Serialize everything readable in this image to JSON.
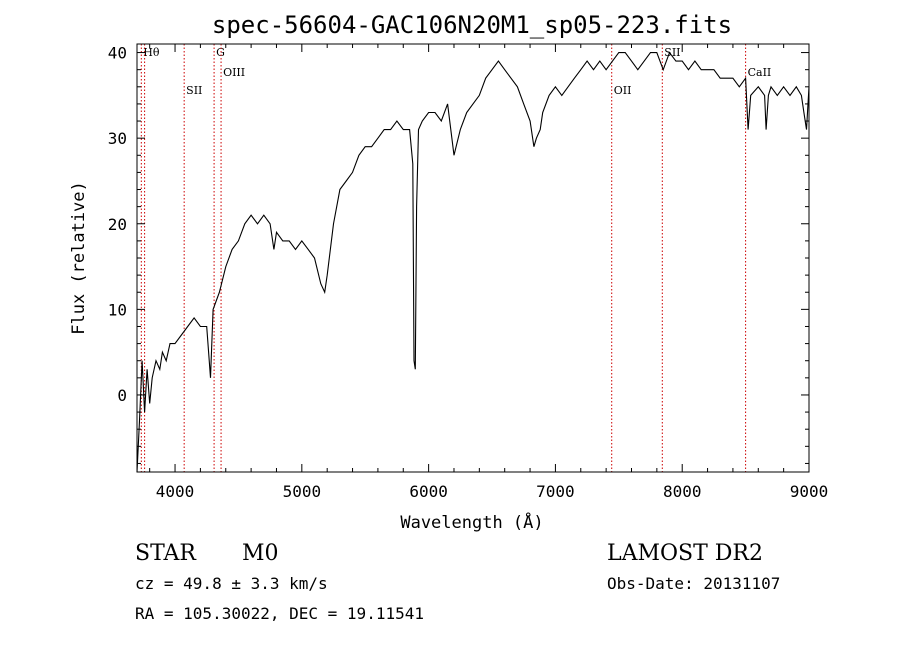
{
  "chart_data": {
    "type": "line",
    "title": "spec-56604-GAC106N20M1_sp05-223.fits",
    "xlabel": "Wavelength (Å)",
    "ylabel": "Flux (relative)",
    "xlim": [
      3700,
      9000
    ],
    "ylim": [
      -9,
      41
    ],
    "xticks": [
      4000,
      5000,
      6000,
      7000,
      8000,
      9000
    ],
    "yticks": [
      0,
      10,
      20,
      30,
      40
    ],
    "grid": false,
    "series": [
      {
        "values": [
          [
            3700,
            -9
          ],
          [
            3720,
            -3
          ],
          [
            3740,
            4
          ],
          [
            3760,
            -2
          ],
          [
            3780,
            3
          ],
          [
            3800,
            -1
          ],
          [
            3820,
            2
          ],
          [
            3850,
            4
          ],
          [
            3880,
            3
          ],
          [
            3900,
            5
          ],
          [
            3930,
            4
          ],
          [
            3960,
            6
          ],
          [
            4000,
            6
          ],
          [
            4050,
            7
          ],
          [
            4100,
            8
          ],
          [
            4150,
            9
          ],
          [
            4200,
            8
          ],
          [
            4250,
            8
          ],
          [
            4280,
            2
          ],
          [
            4300,
            10
          ],
          [
            4350,
            12
          ],
          [
            4400,
            15
          ],
          [
            4450,
            17
          ],
          [
            4500,
            18
          ],
          [
            4550,
            20
          ],
          [
            4600,
            21
          ],
          [
            4650,
            20
          ],
          [
            4700,
            21
          ],
          [
            4750,
            20
          ],
          [
            4780,
            17
          ],
          [
            4800,
            19
          ],
          [
            4850,
            18
          ],
          [
            4900,
            18
          ],
          [
            4950,
            17
          ],
          [
            5000,
            18
          ],
          [
            5050,
            17
          ],
          [
            5100,
            16
          ],
          [
            5150,
            13
          ],
          [
            5180,
            12
          ],
          [
            5200,
            14
          ],
          [
            5250,
            20
          ],
          [
            5300,
            24
          ],
          [
            5350,
            25
          ],
          [
            5400,
            26
          ],
          [
            5450,
            28
          ],
          [
            5500,
            29
          ],
          [
            5550,
            29
          ],
          [
            5600,
            30
          ],
          [
            5650,
            31
          ],
          [
            5700,
            31
          ],
          [
            5750,
            32
          ],
          [
            5800,
            31
          ],
          [
            5850,
            31
          ],
          [
            5875,
            27
          ],
          [
            5885,
            4
          ],
          [
            5895,
            3
          ],
          [
            5905,
            22
          ],
          [
            5920,
            31
          ],
          [
            5950,
            32
          ],
          [
            6000,
            33
          ],
          [
            6050,
            33
          ],
          [
            6100,
            32
          ],
          [
            6150,
            34
          ],
          [
            6200,
            28
          ],
          [
            6250,
            31
          ],
          [
            6300,
            33
          ],
          [
            6350,
            34
          ],
          [
            6400,
            35
          ],
          [
            6450,
            37
          ],
          [
            6500,
            38
          ],
          [
            6550,
            39
          ],
          [
            6600,
            38
          ],
          [
            6650,
            37
          ],
          [
            6700,
            36
          ],
          [
            6750,
            34
          ],
          [
            6800,
            32
          ],
          [
            6830,
            29
          ],
          [
            6850,
            30
          ],
          [
            6880,
            31
          ],
          [
            6900,
            33
          ],
          [
            6950,
            35
          ],
          [
            7000,
            36
          ],
          [
            7050,
            35
          ],
          [
            7100,
            36
          ],
          [
            7150,
            37
          ],
          [
            7200,
            38
          ],
          [
            7250,
            39
          ],
          [
            7300,
            38
          ],
          [
            7350,
            39
          ],
          [
            7400,
            38
          ],
          [
            7450,
            39
          ],
          [
            7500,
            40
          ],
          [
            7550,
            40
          ],
          [
            7600,
            39
          ],
          [
            7650,
            38
          ],
          [
            7700,
            39
          ],
          [
            7750,
            40
          ],
          [
            7800,
            40
          ],
          [
            7850,
            38
          ],
          [
            7900,
            40
          ],
          [
            7950,
            39
          ],
          [
            8000,
            39
          ],
          [
            8050,
            38
          ],
          [
            8100,
            39
          ],
          [
            8150,
            38
          ],
          [
            8200,
            38
          ],
          [
            8250,
            38
          ],
          [
            8300,
            37
          ],
          [
            8350,
            37
          ],
          [
            8400,
            37
          ],
          [
            8450,
            36
          ],
          [
            8500,
            37
          ],
          [
            8520,
            31
          ],
          [
            8540,
            35
          ],
          [
            8600,
            36
          ],
          [
            8650,
            35
          ],
          [
            8662,
            31
          ],
          [
            8680,
            35
          ],
          [
            8700,
            36
          ],
          [
            8750,
            35
          ],
          [
            8800,
            36
          ],
          [
            8850,
            35
          ],
          [
            8900,
            36
          ],
          [
            8940,
            35
          ],
          [
            8960,
            33
          ],
          [
            8980,
            31
          ],
          [
            9000,
            36
          ]
        ]
      }
    ],
    "lines": [
      {
        "wavelength": 3734,
        "label": "Hθ"
      },
      {
        "wavelength": 3760,
        "label": ""
      },
      {
        "wavelength": 4072,
        "label": "SII"
      },
      {
        "wavelength": 4308,
        "label": "G"
      },
      {
        "wavelength": 4363,
        "label": "OIII"
      },
      {
        "wavelength": 7444,
        "label": "OII"
      },
      {
        "wavelength": 7843,
        "label": "SII"
      },
      {
        "wavelength": 8500,
        "label": "CaII"
      }
    ],
    "line_color": "#cc0000"
  },
  "info": {
    "class": "STAR",
    "subclass": "M0",
    "survey": "LAMOST DR2",
    "cz": "cz = 49.8 ± 3.3 km/s",
    "obs_date": "Obs-Date: 20131107",
    "coords": "RA = 105.30022, DEC =  19.11541"
  }
}
